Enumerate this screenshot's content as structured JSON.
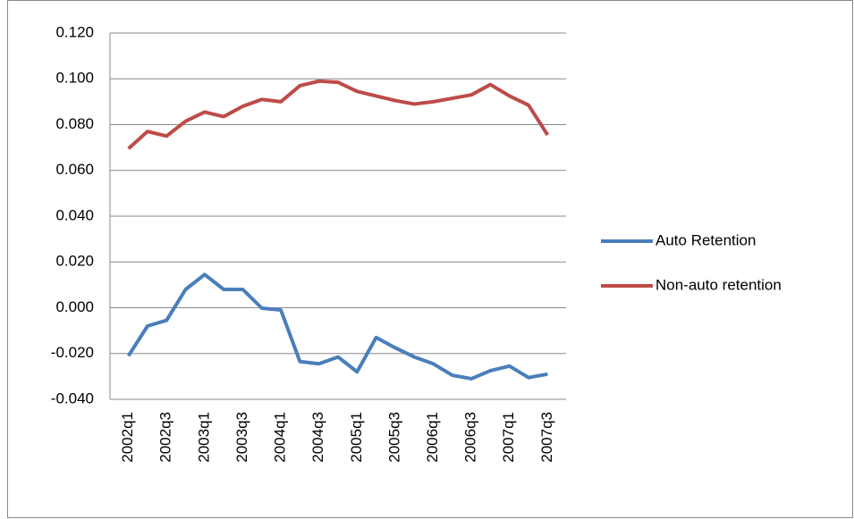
{
  "chart_data": {
    "type": "line",
    "categories": [
      "2002q1",
      null,
      "2002q3",
      null,
      "2003q1",
      null,
      "2003q3",
      null,
      "2004q1",
      null,
      "2004q3",
      null,
      "2005q1",
      null,
      "2005q3",
      null,
      "2006q1",
      null,
      "2006q3",
      null,
      "2007q1",
      null,
      "2007q3"
    ],
    "series": [
      {
        "name": "Auto Retention",
        "color": "#4a7ebb",
        "values": [
          -0.021,
          -0.008,
          -0.0055,
          0.008,
          0.0145,
          0.008,
          0.008,
          -0.0002,
          -0.001,
          -0.0235,
          -0.0245,
          -0.0215,
          -0.028,
          -0.013,
          -0.0175,
          -0.0215,
          -0.0245,
          -0.0295,
          -0.031,
          -0.0275,
          -0.0255,
          -0.0305,
          -0.029
        ]
      },
      {
        "name": "Non-auto retention",
        "color": "#be4b48",
        "values": [
          0.0695,
          0.077,
          0.075,
          0.0815,
          0.0855,
          0.0835,
          0.088,
          0.091,
          0.09,
          0.097,
          0.099,
          0.0985,
          0.0945,
          0.0925,
          0.0905,
          0.089,
          0.09,
          0.0915,
          0.093,
          0.0975,
          0.0925,
          0.0885,
          0.0755
        ]
      }
    ],
    "ylim": [
      -0.04,
      0.12
    ],
    "yticks": [
      {
        "value": -0.04,
        "label": "-0.040"
      },
      {
        "value": -0.02,
        "label": "-0.020"
      },
      {
        "value": 0,
        "label": "0.000"
      },
      {
        "value": 0.02,
        "label": "0.020"
      },
      {
        "value": 0.04,
        "label": "0.040"
      },
      {
        "value": 0.06,
        "label": "0.060"
      },
      {
        "value": 0.08,
        "label": "0.080"
      },
      {
        "value": 0.1,
        "label": "0.100"
      },
      {
        "value": 0.12,
        "label": "0.120"
      }
    ],
    "grid": true,
    "legend": "right"
  }
}
